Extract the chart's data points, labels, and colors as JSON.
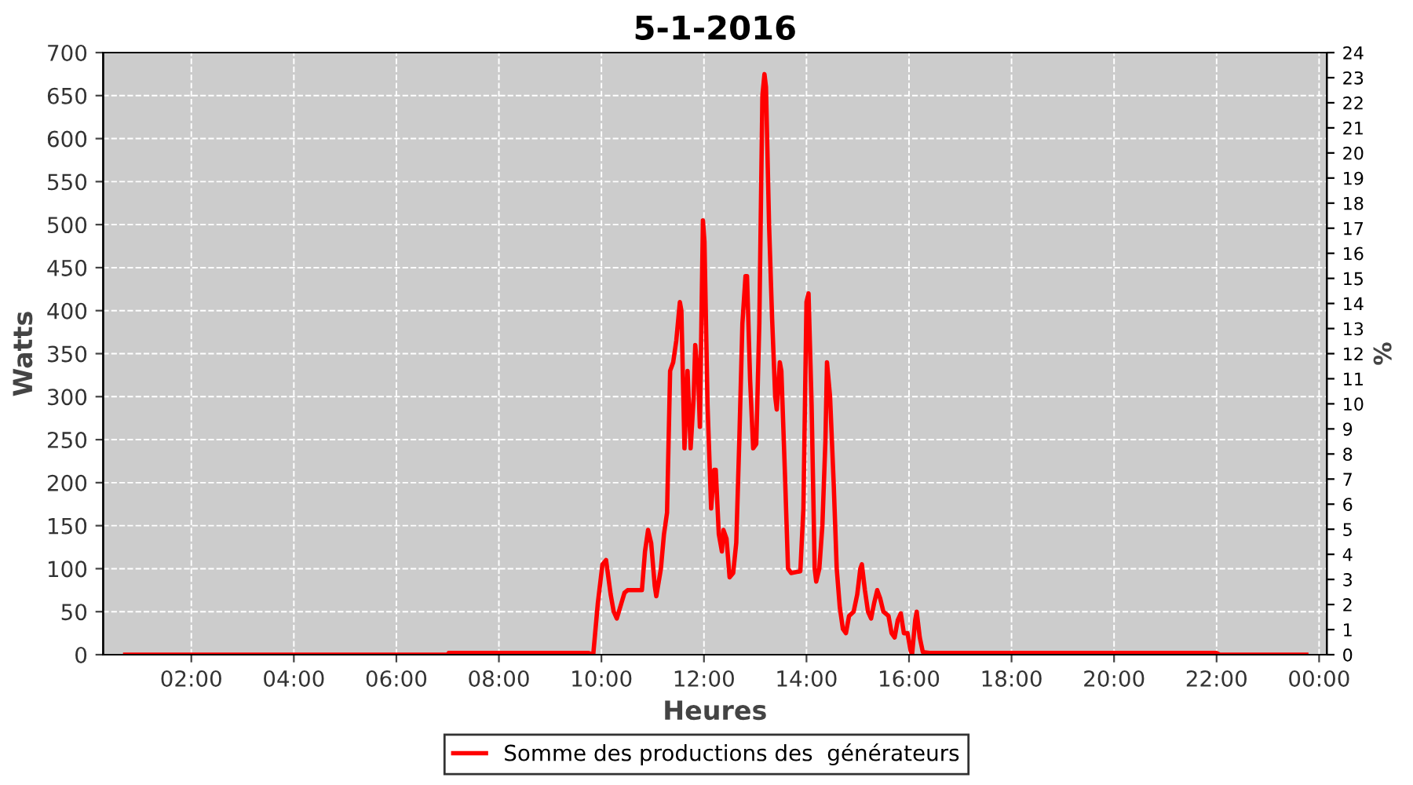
{
  "chart_data": {
    "type": "line",
    "title": "5-1-2016",
    "xlabel": "Heures",
    "ylabel": "Watts",
    "y2label": "%",
    "xlim": [
      0.28,
      24.15
    ],
    "xticks": [
      {
        "value": 2,
        "label": "02:00"
      },
      {
        "value": 4,
        "label": "04:00"
      },
      {
        "value": 6,
        "label": "06:00"
      },
      {
        "value": 8,
        "label": "08:00"
      },
      {
        "value": 10,
        "label": "10:00"
      },
      {
        "value": 12,
        "label": "12:00"
      },
      {
        "value": 14,
        "label": "14:00"
      },
      {
        "value": 16,
        "label": "16:00"
      },
      {
        "value": 18,
        "label": "18:00"
      },
      {
        "value": 20,
        "label": "20:00"
      },
      {
        "value": 22,
        "label": "22:00"
      },
      {
        "value": 24,
        "label": "00:00"
      }
    ],
    "ylim": [
      0,
      700
    ],
    "yticks": [
      0,
      50,
      100,
      150,
      200,
      250,
      300,
      350,
      400,
      450,
      500,
      550,
      600,
      650,
      700
    ],
    "y2lim": [
      0,
      24
    ],
    "y2ticks": [
      0,
      1,
      2,
      3,
      4,
      5,
      6,
      7,
      8,
      9,
      10,
      11,
      12,
      13,
      14,
      15,
      16,
      17,
      18,
      19,
      20,
      21,
      22,
      23,
      24
    ],
    "grid": true,
    "legend": "bottom",
    "line_style": "solid",
    "series": [
      {
        "name": "Somme des productions des  générateurs",
        "color": "#ff0000",
        "x": [
          0.71,
          7.0,
          7.02,
          9.75,
          9.84,
          9.93,
          10.02,
          10.09,
          10.18,
          10.24,
          10.3,
          10.39,
          10.45,
          10.51,
          10.79,
          10.85,
          10.91,
          10.97,
          11.04,
          11.07,
          11.16,
          11.22,
          11.28,
          11.34,
          11.4,
          11.46,
          11.53,
          11.56,
          11.62,
          11.68,
          11.74,
          11.8,
          11.83,
          11.89,
          11.92,
          11.98,
          12.01,
          12.07,
          12.14,
          12.2,
          12.23,
          12.29,
          12.35,
          12.38,
          12.44,
          12.5,
          12.57,
          12.63,
          12.69,
          12.75,
          12.81,
          12.84,
          12.9,
          12.96,
          13.02,
          13.08,
          13.14,
          13.18,
          13.21,
          13.27,
          13.33,
          13.39,
          13.42,
          13.48,
          13.51,
          13.58,
          13.64,
          13.7,
          13.88,
          13.94,
          14.0,
          14.04,
          14.1,
          14.16,
          14.19,
          14.25,
          14.31,
          14.37,
          14.4,
          14.46,
          14.53,
          14.59,
          14.65,
          14.71,
          14.77,
          14.83,
          14.92,
          14.99,
          15.05,
          15.08,
          15.14,
          15.2,
          15.26,
          15.32,
          15.38,
          15.44,
          15.5,
          15.6,
          15.66,
          15.72,
          15.78,
          15.84,
          15.9,
          15.97,
          16.03,
          16.06,
          16.12,
          16.15,
          16.21,
          16.27,
          16.4,
          22.0,
          22.06,
          23.75
        ],
        "values": [
          0,
          0,
          2,
          2,
          0,
          60,
          105,
          110,
          70,
          50,
          42,
          60,
          72,
          75,
          75,
          120,
          145,
          130,
          80,
          68,
          100,
          140,
          165,
          330,
          340,
          365,
          410,
          400,
          240,
          330,
          240,
          300,
          360,
          320,
          265,
          505,
          480,
          290,
          170,
          215,
          215,
          140,
          120,
          145,
          135,
          90,
          95,
          130,
          250,
          385,
          440,
          440,
          320,
          240,
          245,
          385,
          650,
          675,
          660,
          500,
          390,
          300,
          285,
          340,
          330,
          210,
          100,
          95,
          97,
          170,
          410,
          420,
          290,
          100,
          85,
          100,
          150,
          250,
          340,
          300,
          200,
          100,
          55,
          30,
          25,
          45,
          50,
          70,
          100,
          105,
          75,
          50,
          42,
          60,
          75,
          65,
          50,
          45,
          25,
          20,
          40,
          48,
          25,
          25,
          5,
          0,
          40,
          50,
          20,
          3,
          2,
          2,
          0,
          0
        ]
      }
    ]
  }
}
